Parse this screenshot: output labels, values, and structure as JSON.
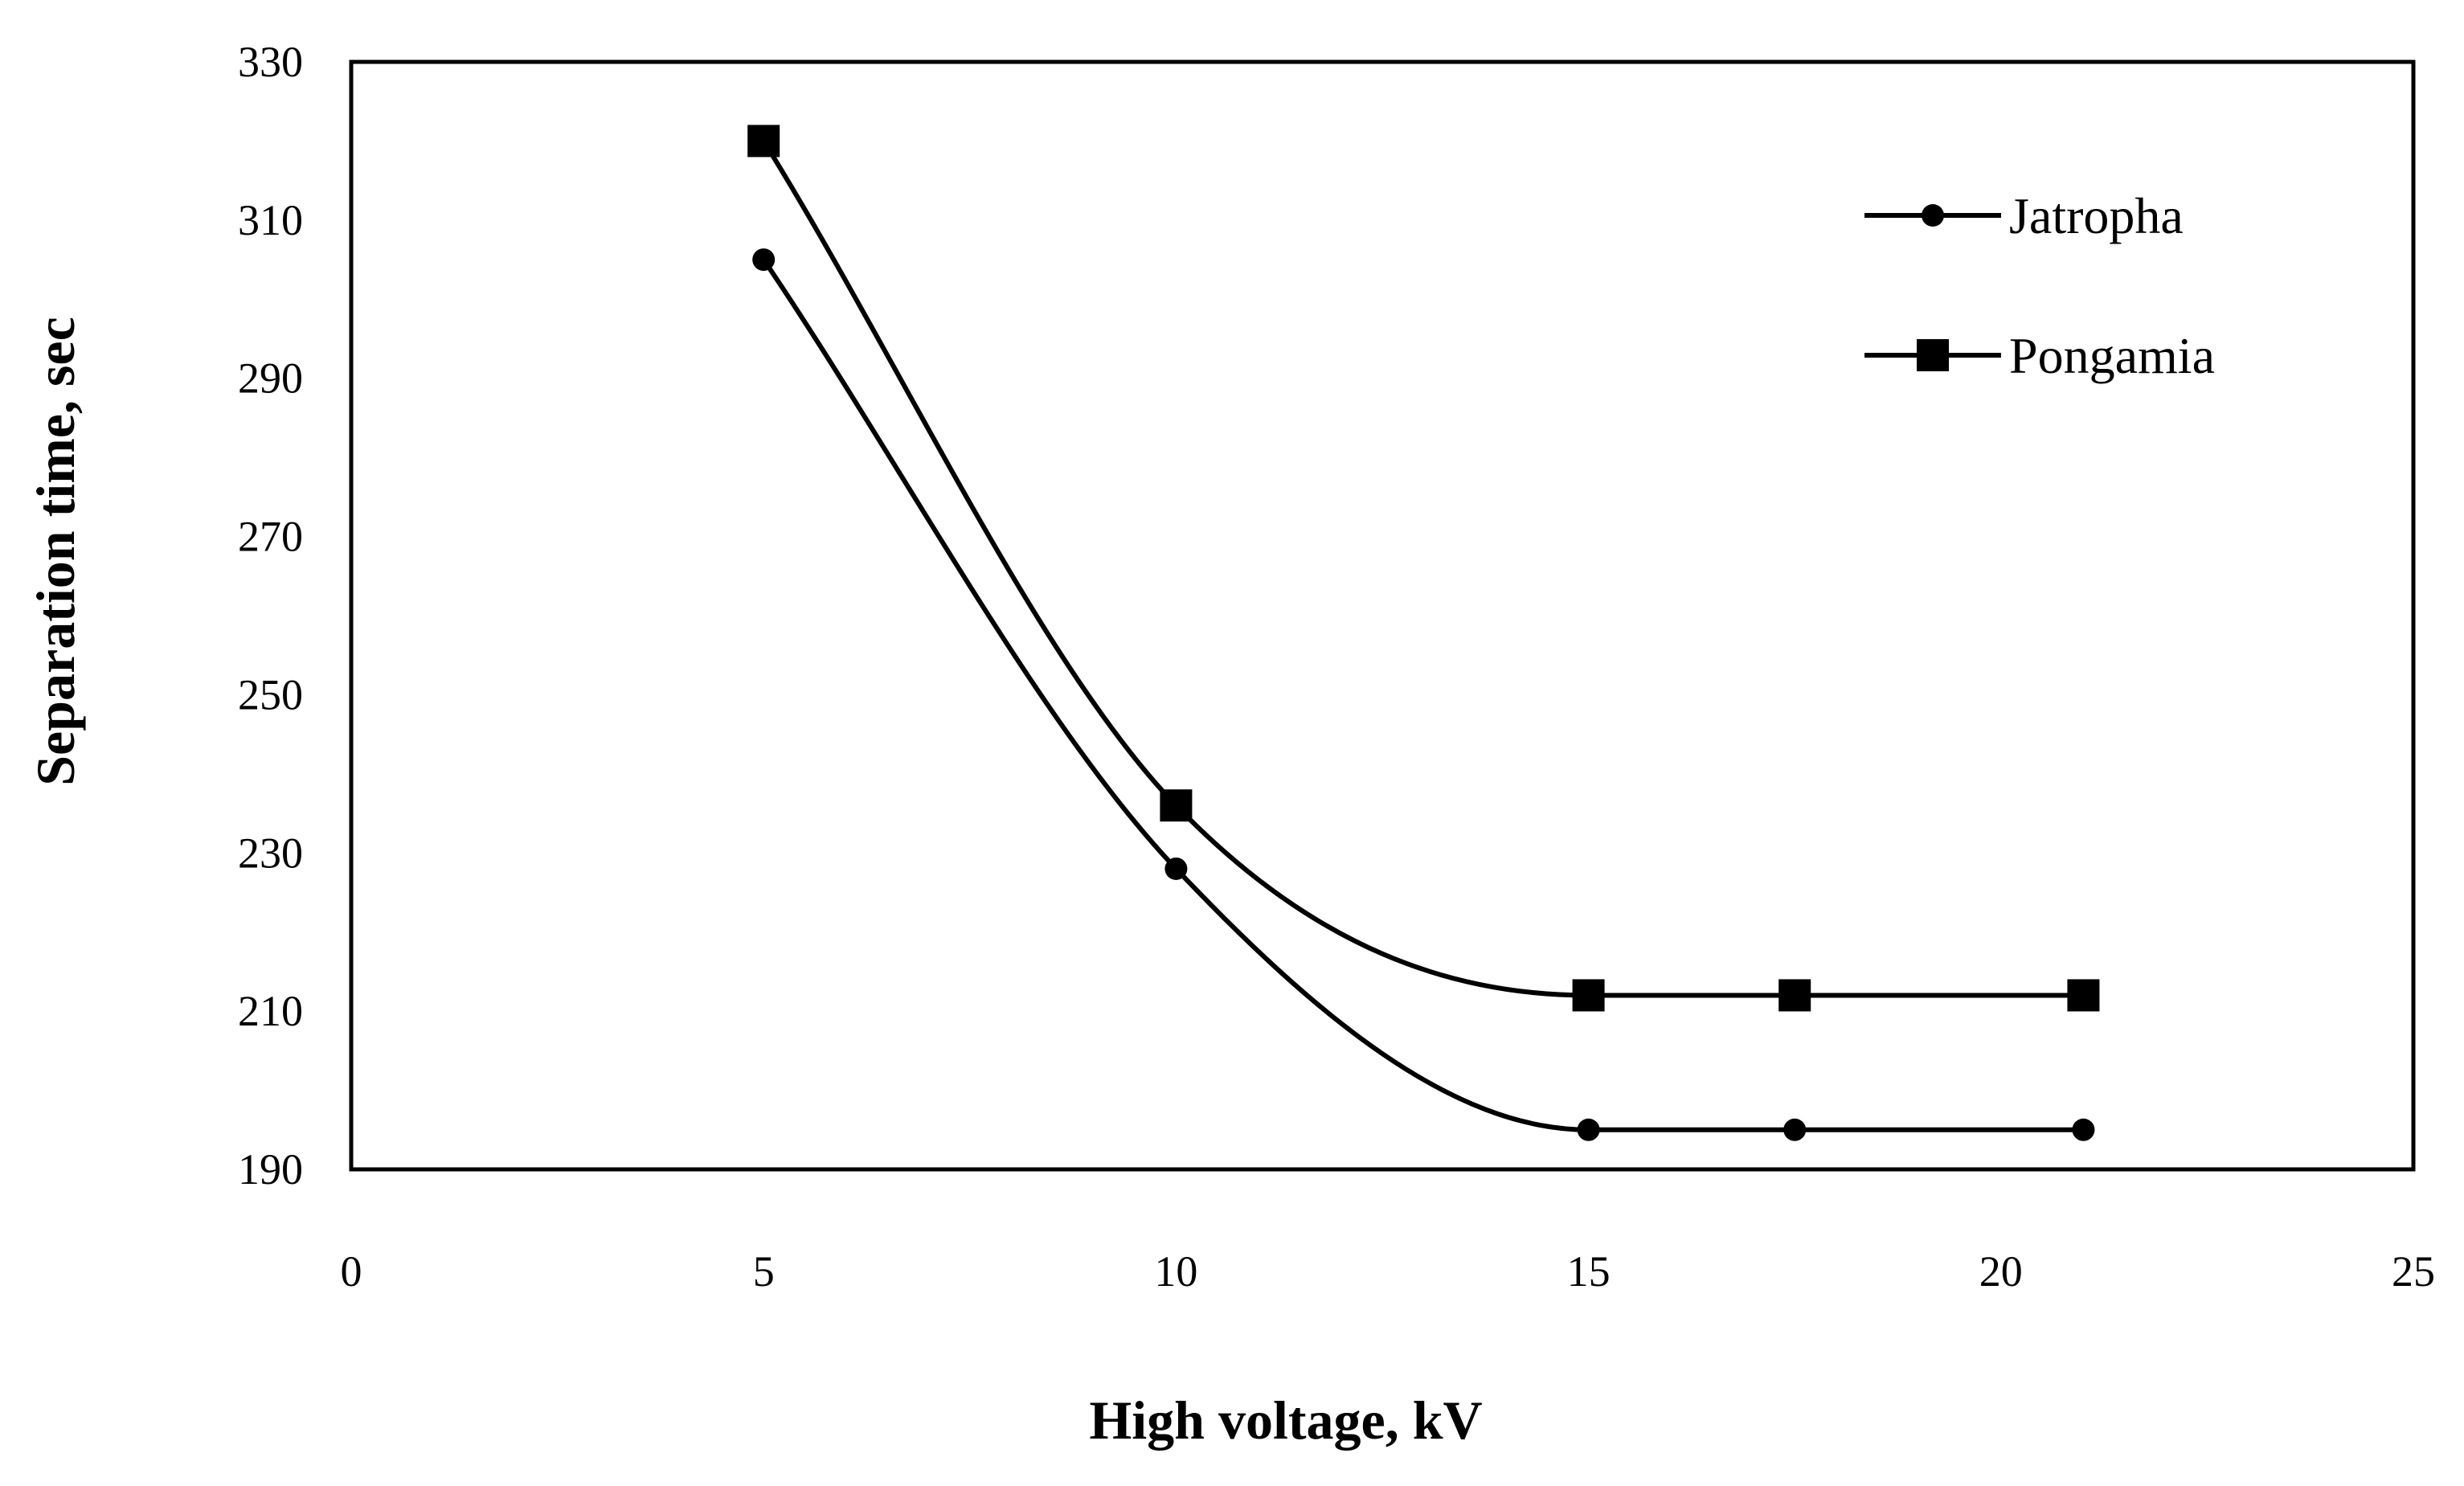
{
  "chart_data": {
    "type": "line",
    "title": "",
    "xlabel": "High voltage, kV",
    "ylabel": "Separation time, sec",
    "xlim": [
      0,
      25
    ],
    "ylim": [
      190,
      330
    ],
    "xticks": [
      0,
      5,
      10,
      15,
      20,
      25
    ],
    "yticks": [
      190,
      210,
      230,
      250,
      270,
      290,
      310,
      330
    ],
    "grid": false,
    "smooth": true,
    "legend_position": "top-right",
    "series": [
      {
        "name": "Jatropha",
        "marker": "circle",
        "color": "#000000",
        "x": [
          5,
          10,
          15,
          17.5,
          21
        ],
        "y": [
          305,
          228,
          195,
          195,
          195
        ]
      },
      {
        "name": "Pongamia",
        "marker": "square",
        "color": "#000000",
        "x": [
          5,
          10,
          15,
          17.5,
          21
        ],
        "y": [
          320,
          236,
          212,
          212,
          212
        ]
      }
    ]
  }
}
